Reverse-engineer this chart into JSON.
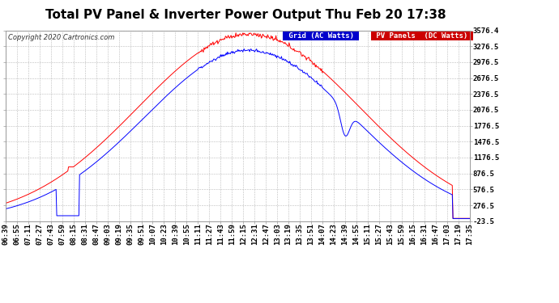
{
  "title": "Total PV Panel & Inverter Power Output Thu Feb 20 17:38",
  "copyright": "Copyright 2020 Cartronics.com",
  "legend_grid": "Grid (AC Watts)",
  "legend_pv": "PV Panels  (DC Watts)",
  "yticks": [
    -23.5,
    276.5,
    576.5,
    876.5,
    1176.5,
    1476.5,
    1776.5,
    2076.5,
    2376.5,
    2676.5,
    2976.5,
    3276.5,
    3576.4
  ],
  "ylim": [
    -23.5,
    3576.4
  ],
  "xtick_labels": [
    "06:39",
    "06:55",
    "07:11",
    "07:27",
    "07:43",
    "07:59",
    "08:15",
    "08:31",
    "08:47",
    "09:03",
    "09:19",
    "09:35",
    "09:51",
    "10:07",
    "10:23",
    "10:39",
    "10:55",
    "11:11",
    "11:27",
    "11:43",
    "11:59",
    "12:15",
    "12:31",
    "12:47",
    "13:03",
    "13:19",
    "13:35",
    "13:51",
    "14:07",
    "14:23",
    "14:39",
    "14:55",
    "15:11",
    "15:27",
    "15:43",
    "15:59",
    "16:15",
    "16:31",
    "16:47",
    "17:03",
    "17:19",
    "17:35"
  ],
  "bg_color": "#ffffff",
  "grid_color": "#bbbbbb",
  "line_blue": "#0000ff",
  "line_red": "#ff0000",
  "legend_grid_bg": "#0000cc",
  "legend_pv_bg": "#cc0000",
  "title_fontsize": 11,
  "tick_fontsize": 6.5,
  "copyright_fontsize": 6
}
